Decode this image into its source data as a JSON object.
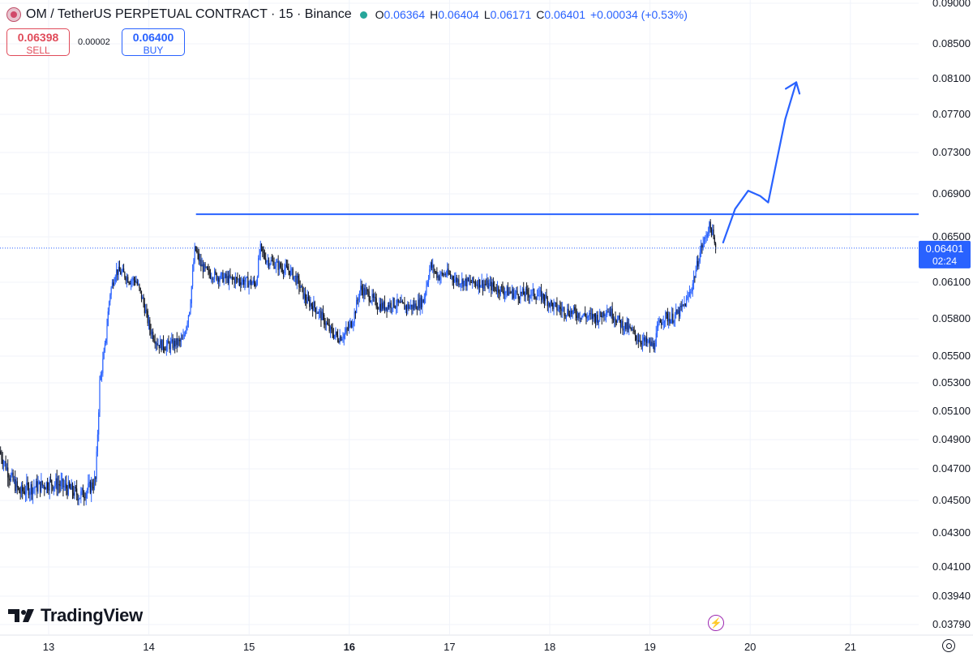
{
  "header": {
    "title": "OM / TetherUS PERPETUAL CONTRACT · 15 · Binance",
    "o_label": "O",
    "o_value": "0.06364",
    "h_label": "H",
    "h_value": "0.06404",
    "l_label": "L",
    "l_value": "0.06171",
    "c_label": "C",
    "c_value": "0.06401",
    "change": "+0.00034 (+0.53%)"
  },
  "trade": {
    "sell_price": "0.06398",
    "sell_label": "SELL",
    "spread": "0.00002",
    "buy_price": "0.06400",
    "buy_label": "BUY"
  },
  "price_tag": {
    "price": "0.06401",
    "countdown": "02:24"
  },
  "brand": "TradingView",
  "icons": {
    "logo": "om-coin-icon",
    "status": "market-open-dot",
    "flash": "lightning-icon",
    "settings": "gear-icon",
    "brand": "tradingview-logo-icon"
  },
  "colors": {
    "up": "#2962ff",
    "down": "#131722",
    "accent": "#2962ff",
    "sell": "#e04b5a",
    "grid": "#f0f3fa"
  },
  "chart_data": {
    "type": "candlestick",
    "interval": "15",
    "y_ticks": [
      "0.09000",
      "0.08500",
      "0.08100",
      "0.07700",
      "0.07300",
      "0.06900",
      "0.06500",
      "0.06100",
      "0.05800",
      "0.05500",
      "0.05300",
      "0.05100",
      "0.04900",
      "0.04700",
      "0.04500",
      "0.04300",
      "0.04100",
      "0.03940",
      "0.03790"
    ],
    "x_ticks": [
      {
        "label": "13",
        "day": 13,
        "bold": false
      },
      {
        "label": "14",
        "day": 14,
        "bold": false
      },
      {
        "label": "15",
        "day": 15,
        "bold": false
      },
      {
        "label": "16",
        "day": 16,
        "bold": true
      },
      {
        "label": "17",
        "day": 17,
        "bold": false
      },
      {
        "label": "18",
        "day": 18,
        "bold": false
      },
      {
        "label": "19",
        "day": 19,
        "bold": false
      },
      {
        "label": "20",
        "day": 20,
        "bold": false
      },
      {
        "label": "21",
        "day": 21,
        "bold": false
      }
    ],
    "x_range_days": [
      12.52,
      21.98
    ],
    "last_price": 0.06401,
    "price_path": [
      [
        12.52,
        0.0482
      ],
      [
        12.62,
        0.0466
      ],
      [
        12.72,
        0.0455
      ],
      [
        12.82,
        0.0458
      ],
      [
        12.92,
        0.0459
      ],
      [
        13.02,
        0.0461
      ],
      [
        13.12,
        0.046
      ],
      [
        13.22,
        0.0457
      ],
      [
        13.32,
        0.0453
      ],
      [
        13.42,
        0.0458
      ],
      [
        13.48,
        0.0463
      ],
      [
        13.52,
        0.053
      ],
      [
        13.57,
        0.0555
      ],
      [
        13.62,
        0.06
      ],
      [
        13.68,
        0.062
      ],
      [
        13.75,
        0.0618
      ],
      [
        13.82,
        0.0612
      ],
      [
        13.88,
        0.0612
      ],
      [
        13.95,
        0.0595
      ],
      [
        14.02,
        0.0572
      ],
      [
        14.1,
        0.056
      ],
      [
        14.18,
        0.0558
      ],
      [
        14.27,
        0.056
      ],
      [
        14.35,
        0.0562
      ],
      [
        14.42,
        0.059
      ],
      [
        14.47,
        0.064
      ],
      [
        14.53,
        0.0625
      ],
      [
        14.6,
        0.0618
      ],
      [
        14.7,
        0.0615
      ],
      [
        14.8,
        0.0613
      ],
      [
        14.9,
        0.0612
      ],
      [
        15.0,
        0.061
      ],
      [
        15.08,
        0.0609
      ],
      [
        15.12,
        0.064
      ],
      [
        15.18,
        0.063
      ],
      [
        15.25,
        0.0627
      ],
      [
        15.33,
        0.0623
      ],
      [
        15.42,
        0.062
      ],
      [
        15.5,
        0.061
      ],
      [
        15.58,
        0.0595
      ],
      [
        15.66,
        0.059
      ],
      [
        15.75,
        0.058
      ],
      [
        15.82,
        0.057
      ],
      [
        15.9,
        0.0565
      ],
      [
        15.97,
        0.0568
      ],
      [
        16.05,
        0.058
      ],
      [
        16.12,
        0.0605
      ],
      [
        16.2,
        0.06
      ],
      [
        16.28,
        0.0592
      ],
      [
        16.36,
        0.059
      ],
      [
        16.45,
        0.0593
      ],
      [
        16.55,
        0.059
      ],
      [
        16.65,
        0.059
      ],
      [
        16.75,
        0.0595
      ],
      [
        16.82,
        0.0625
      ],
      [
        16.9,
        0.0615
      ],
      [
        16.98,
        0.0618
      ],
      [
        17.08,
        0.0612
      ],
      [
        17.18,
        0.061
      ],
      [
        17.3,
        0.061
      ],
      [
        17.42,
        0.0607
      ],
      [
        17.55,
        0.0603
      ],
      [
        17.7,
        0.06
      ],
      [
        17.82,
        0.0601
      ],
      [
        17.95,
        0.0598
      ],
      [
        18.05,
        0.059
      ],
      [
        18.15,
        0.0587
      ],
      [
        18.25,
        0.0585
      ],
      [
        18.38,
        0.0582
      ],
      [
        18.5,
        0.0581
      ],
      [
        18.58,
        0.0588
      ],
      [
        18.66,
        0.0582
      ],
      [
        18.72,
        0.0576
      ],
      [
        18.8,
        0.0572
      ],
      [
        18.88,
        0.0565
      ],
      [
        18.96,
        0.0561
      ],
      [
        19.05,
        0.0558
      ],
      [
        19.1,
        0.0575
      ],
      [
        19.15,
        0.0582
      ],
      [
        19.22,
        0.058
      ],
      [
        19.3,
        0.0585
      ],
      [
        19.38,
        0.0595
      ],
      [
        19.43,
        0.0607
      ],
      [
        19.48,
        0.0625
      ],
      [
        19.52,
        0.064
      ],
      [
        19.56,
        0.0648
      ],
      [
        19.6,
        0.066
      ],
      [
        19.63,
        0.0655
      ],
      [
        19.66,
        0.064
      ]
    ],
    "annotations": [
      {
        "type": "horizontal_line",
        "price": 0.0671,
        "from_day": 14.47,
        "to_day": 21.98
      },
      {
        "type": "freehand_arrow",
        "points": [
          [
            19.73,
            0.0645
          ],
          [
            19.85,
            0.0676
          ],
          [
            19.98,
            0.0693
          ],
          [
            20.1,
            0.0688
          ],
          [
            20.18,
            0.0682
          ],
          [
            20.25,
            0.0715
          ],
          [
            20.35,
            0.0765
          ],
          [
            20.46,
            0.0806
          ]
        ]
      }
    ]
  }
}
